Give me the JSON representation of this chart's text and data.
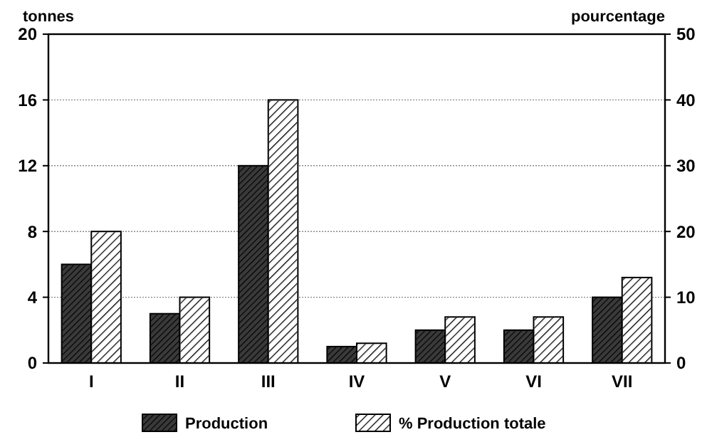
{
  "chart_data": {
    "type": "bar",
    "ylabel": "tonnes",
    "y2label": "pourcentage",
    "categories": [
      "I",
      "II",
      "III",
      "IV",
      "V",
      "VI",
      "VII"
    ],
    "series": [
      {
        "name": "Production",
        "color": "#3a3a3a",
        "values": [
          6,
          3,
          12,
          1,
          2,
          2,
          4
        ]
      },
      {
        "name": "% Production totale",
        "color": "#ffffff",
        "axis": "y2",
        "values": [
          20,
          10,
          40,
          3,
          7,
          7,
          13
        ]
      }
    ],
    "ylim": [
      0,
      20
    ],
    "yticks": [
      0,
      4,
      8,
      12,
      16,
      20
    ],
    "y2lim": [
      0,
      50
    ],
    "y2ticks": [
      0,
      10,
      20,
      30,
      40,
      50
    ],
    "grid": "y",
    "legend": "bottom"
  }
}
